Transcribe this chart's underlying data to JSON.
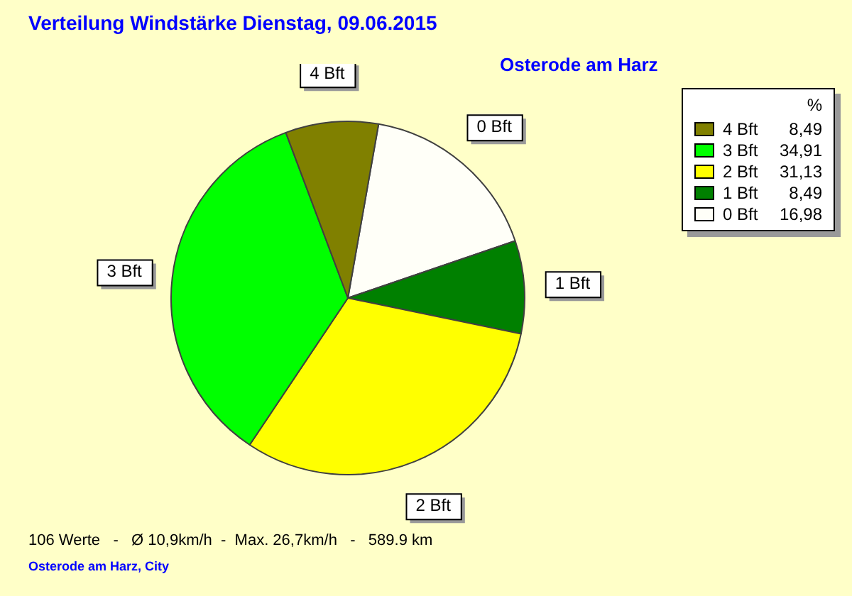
{
  "chart_data": {
    "type": "pie",
    "title": "Verteilung Windstärke  Dienstag, 09.06.2015",
    "subtitle": "Osterode am Harz",
    "legend_title": "%",
    "categories": [
      "4 Bft",
      "3 Bft",
      "2 Bft",
      "1 Bft",
      "0 Bft"
    ],
    "values": [
      8.49,
      34.91,
      31.13,
      8.49,
      16.98
    ],
    "value_labels": [
      "8,49",
      "34,91",
      "31,13",
      "8,49",
      "16,98"
    ],
    "colors": [
      "#808000",
      "#00ff00",
      "#ffff00",
      "#008000",
      "#fffff8"
    ],
    "legend": "top right",
    "annotations": [
      "106 Werte   -   Ø 10,9km/h  -  Max. 26,7km/h   -   589.9 km",
      "Osterode am Harz, City"
    ]
  }
}
